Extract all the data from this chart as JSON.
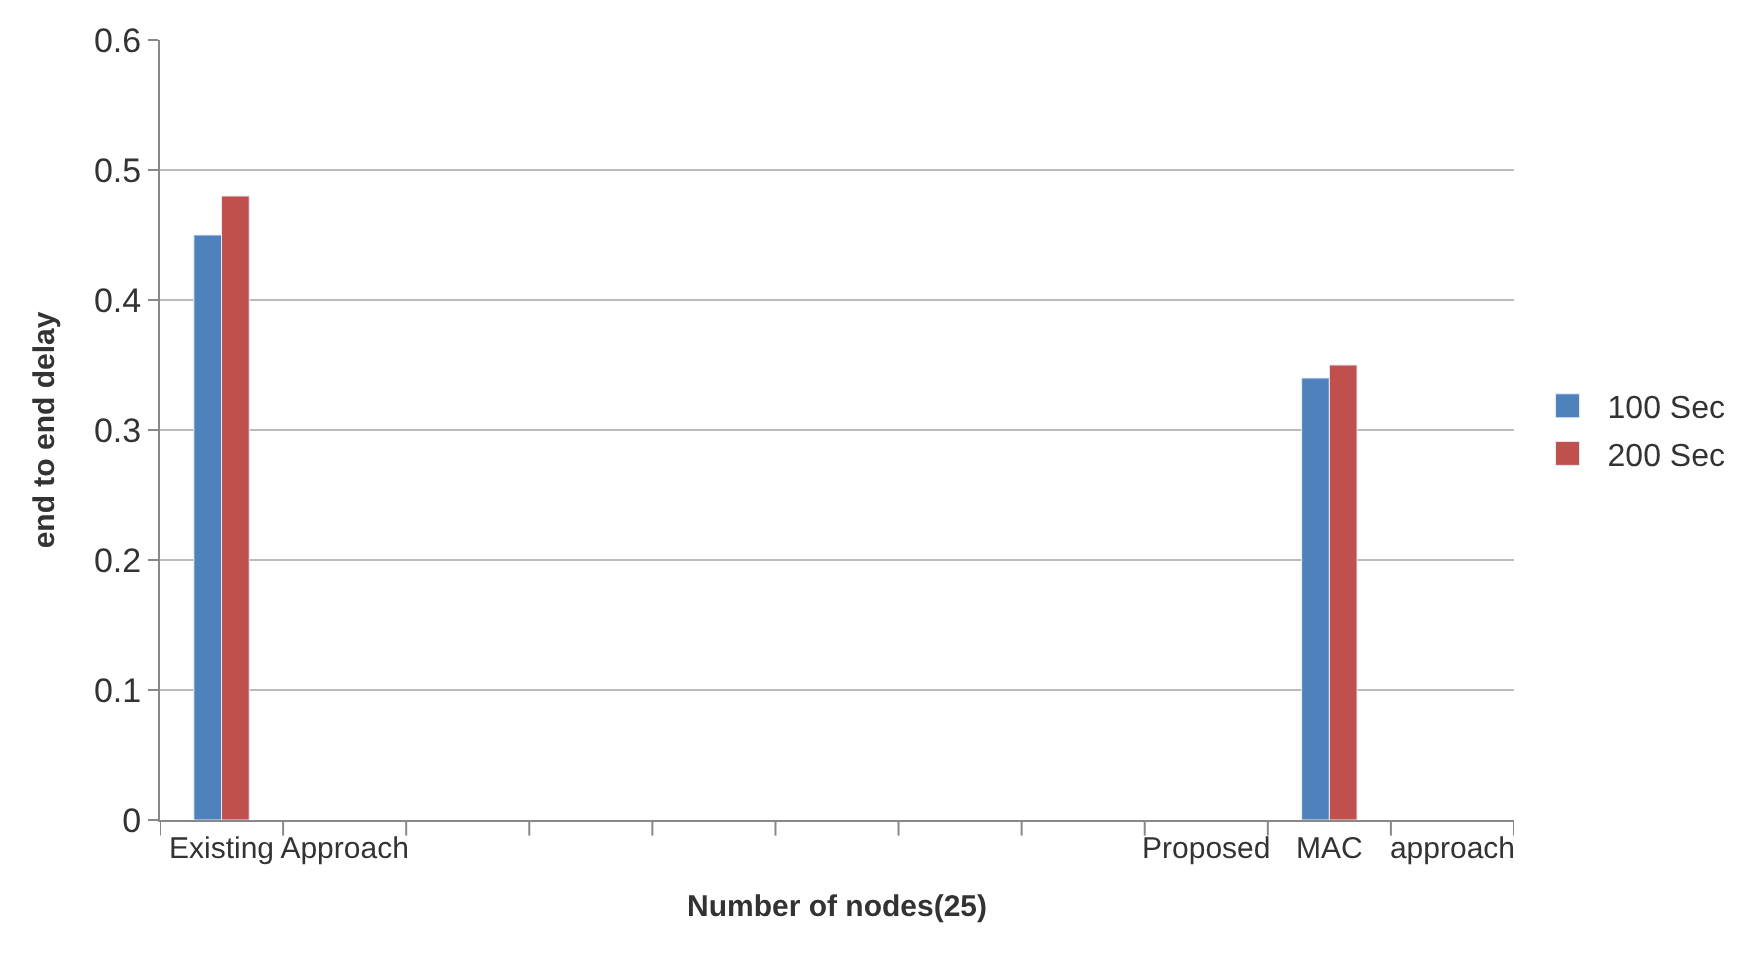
{
  "chart_data": {
    "type": "bar",
    "xlabel": "Number of nodes(25)",
    "ylabel": "end to end delay",
    "categories": [
      "Existing",
      "Approach",
      null,
      null,
      null,
      null,
      null,
      null,
      "Proposed",
      "MAC",
      "approach"
    ],
    "series": [
      {
        "name": "100 Sec",
        "color": "#4f81bd",
        "values": [
          0.45,
          null,
          null,
          null,
          null,
          null,
          null,
          null,
          null,
          0.34,
          null
        ]
      },
      {
        "name": "200 Sec",
        "color": "#c0504d",
        "values": [
          0.48,
          null,
          null,
          null,
          null,
          null,
          null,
          null,
          null,
          0.35,
          null
        ]
      }
    ],
    "ylim": [
      0,
      0.6
    ],
    "yticks": [
      0,
      0.1,
      0.2,
      0.3,
      0.4,
      0.5,
      0.6
    ],
    "grid": "y",
    "legend": "right"
  }
}
